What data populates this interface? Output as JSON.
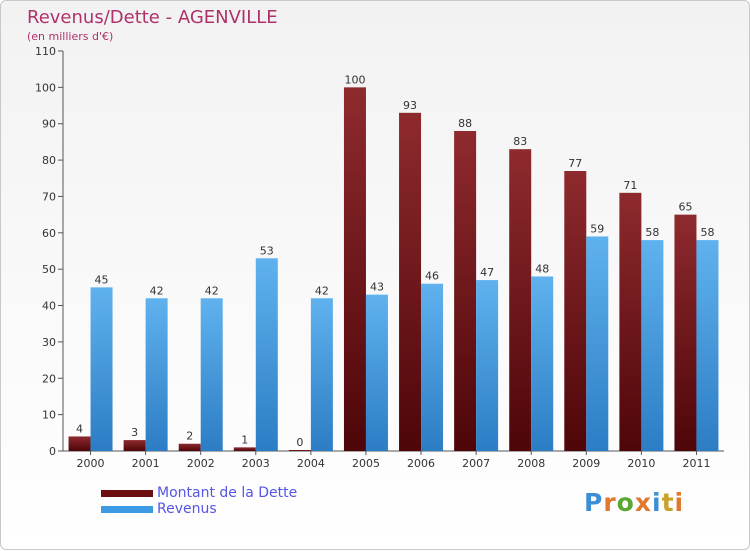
{
  "header": {
    "title": "Revenus/Dette - AGENVILLE",
    "subtitle": "(en milliers d'€)"
  },
  "legend": {
    "items": [
      {
        "label": "Montant de la Dette",
        "color": "#6b0f12"
      },
      {
        "label": "Revenus",
        "color": "#3d9be6"
      }
    ]
  },
  "logo": {
    "letters": [
      "P",
      "r",
      "o",
      "x",
      "i",
      "t",
      "i"
    ],
    "colors": [
      "#3c8fd4",
      "#e0782d",
      "#5aa832",
      "#e0782d",
      "#3c8fd4",
      "#c9a227",
      "#e0782d"
    ]
  },
  "chart_data": {
    "type": "bar",
    "title": "Revenus/Dette - AGENVILLE",
    "subtitle": "(en milliers d'€)",
    "categories": [
      "2000",
      "2001",
      "2002",
      "2003",
      "2004",
      "2005",
      "2006",
      "2007",
      "2008",
      "2009",
      "2010",
      "2011"
    ],
    "series": [
      {
        "name": "Montant de la Dette",
        "color": "#6b0f12",
        "values": [
          4,
          3,
          2,
          1,
          0,
          100,
          93,
          88,
          83,
          77,
          71,
          65
        ]
      },
      {
        "name": "Revenus",
        "color": "#3d9be6",
        "values": [
          45,
          42,
          42,
          53,
          42,
          43,
          46,
          47,
          48,
          59,
          58,
          58
        ]
      }
    ],
    "yticks": [
      "0",
      "10",
      "20",
      "30",
      "40",
      "50",
      "60",
      "70",
      "80",
      "90",
      "100",
      "110"
    ],
    "ylim": [
      0,
      110
    ],
    "grid": false,
    "legend_position": "bottom-left"
  }
}
